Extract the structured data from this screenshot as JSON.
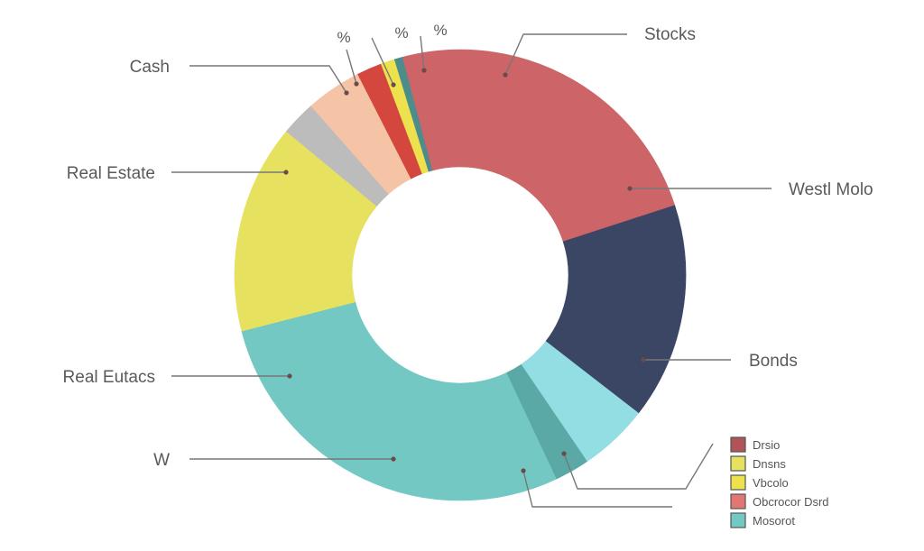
{
  "chart_data": {
    "type": "pie",
    "donut": true,
    "title": "",
    "slices": [
      {
        "name": "Stocks",
        "value": 20.0,
        "color": "#cd6468"
      },
      {
        "name": "Bonds",
        "value": 15.5,
        "color": "#3b4664"
      },
      {
        "name": "",
        "value": 5.0,
        "color": "#93dee3"
      },
      {
        "name": "",
        "value": 2.5,
        "color": "#5aa9a6"
      },
      {
        "name": "",
        "value": 28.0,
        "color": "#74c8c3"
      },
      {
        "name": "Real Estate",
        "value": 15.0,
        "color": "#e7e160"
      },
      {
        "name": "",
        "value": 2.5,
        "color": "#bcbcbc"
      },
      {
        "name": "",
        "value": 4.0,
        "color": "#f5c3a6"
      },
      {
        "name": "",
        "value": 1.8,
        "color": "#d4473f"
      },
      {
        "name": "",
        "value": 1.0,
        "color": "#ede24e"
      },
      {
        "name": "",
        "value": 0.6,
        "color": "#4c8d8c"
      },
      {
        "name": "",
        "value": 4.1,
        "color": "#cd6468"
      }
    ],
    "callouts": [
      {
        "text": "Stocks"
      },
      {
        "text": "Westl Molo"
      },
      {
        "text": "Bonds"
      },
      {
        "text": ""
      },
      {
        "text": ""
      },
      {
        "text": "W"
      },
      {
        "text": "Real Eutacs"
      },
      {
        "text": "Real Estate"
      },
      {
        "text": "Cash"
      },
      {
        "text": "%"
      },
      {
        "text": "%"
      },
      {
        "text": "%"
      }
    ],
    "legend": {
      "placement": "bottom-right",
      "items": [
        {
          "label": "Drsio",
          "color": "#b0545a"
        },
        {
          "label": "Dnsns",
          "color": "#e7e160"
        },
        {
          "label": "Vbcolo",
          "color": "#ede24e"
        },
        {
          "label": "Obcrocor Dsrd",
          "color": "#e27672"
        },
        {
          "label": "Mosorot",
          "color": "#74c8c3"
        }
      ]
    }
  }
}
